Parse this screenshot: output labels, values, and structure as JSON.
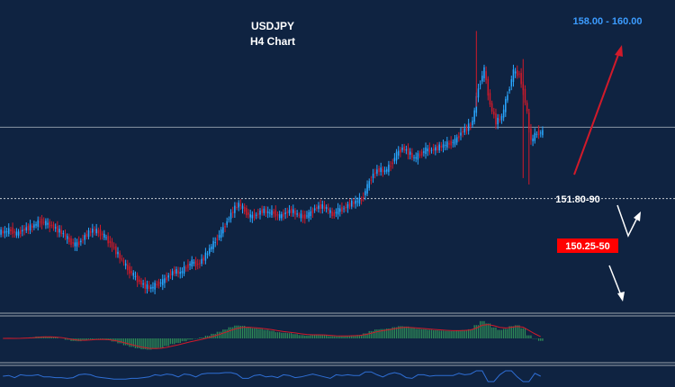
{
  "chart_data": {
    "type": "candlestick",
    "title": "USDJPY",
    "subtitle": "H4 Chart",
    "background": "#0f2341",
    "colors": {
      "up": "#2aa7ff",
      "down": "#d11a2a",
      "histogram": "#2e8b57",
      "signal": "#d11a2a",
      "rsi": "#2f6fd6",
      "separator": "#9aa3ad"
    },
    "ylim": [
      146.8,
      160.7
    ],
    "levels": [
      {
        "value": 155.15,
        "style": "solid",
        "label": ""
      },
      {
        "value": 151.85,
        "style": "dotted",
        "label": "151.80-90"
      }
    ],
    "annotations": [
      {
        "text": "158.00 - 160.00",
        "kind": "target",
        "color": "#3c9cff"
      },
      {
        "text": "150.25-50",
        "kind": "support-box",
        "color": "#ff0000"
      }
    ],
    "arrows": [
      {
        "name": "up-target-arrow",
        "color": "#d11a2a"
      },
      {
        "name": "zigzag-arrow",
        "color": "#ffffff"
      },
      {
        "name": "down-arrow",
        "color": "#ffffff"
      }
    ],
    "close_series": [
      150.3,
      150.4,
      150.2,
      150.4,
      150.5,
      150.6,
      150.8,
      150.7,
      150.6,
      150.4,
      150.2,
      149.9,
      149.7,
      149.9,
      150.2,
      150.4,
      150.3,
      150.1,
      149.8,
      149.4,
      149.0,
      148.6,
      148.3,
      148.0,
      147.8,
      147.7,
      147.9,
      148.0,
      148.3,
      148.5,
      148.4,
      148.7,
      148.9,
      148.8,
      149.1,
      149.5,
      149.9,
      150.3,
      150.8,
      151.3,
      151.6,
      151.3,
      151.0,
      151.1,
      151.3,
      151.2,
      151.2,
      151.0,
      151.2,
      151.3,
      151.1,
      151.0,
      151.1,
      151.4,
      151.5,
      151.4,
      151.1,
      151.3,
      151.4,
      151.6,
      151.7,
      151.8,
      152.4,
      153.0,
      153.2,
      153.1,
      153.4,
      153.9,
      154.2,
      154.0,
      153.7,
      153.9,
      154.1,
      154.1,
      154.2,
      154.3,
      154.4,
      154.5,
      154.9,
      155.1,
      155.4,
      157.0,
      157.8,
      156.2,
      155.4,
      155.6,
      156.7,
      157.7,
      157.6,
      156.4,
      154.5,
      154.9,
      154.9
    ]
  }
}
